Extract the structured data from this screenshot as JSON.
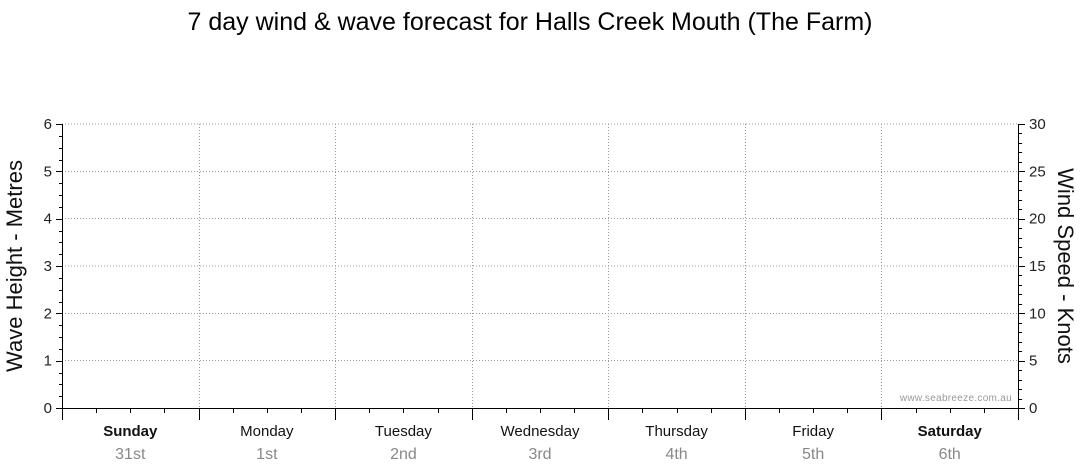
{
  "chart_data": {
    "type": "line",
    "title": "7 day wind & wave forecast for Halls Creek Mouth (The Farm)",
    "ylabel_left": "Wave Height - Metres",
    "ylabel_right": "Wind Speed - Knots",
    "ylim_left": [
      0,
      6
    ],
    "ylim_right": [
      0,
      30
    ],
    "left_ticks": [
      "0",
      "1",
      "2",
      "3",
      "4",
      "5",
      "6"
    ],
    "right_ticks": [
      "0",
      "5",
      "10",
      "15",
      "20",
      "25",
      "30"
    ],
    "days": [
      {
        "name": "Sunday",
        "date": "31st",
        "bold": true
      },
      {
        "name": "Monday",
        "date": "1st",
        "bold": false
      },
      {
        "name": "Tuesday",
        "date": "2nd",
        "bold": false
      },
      {
        "name": "Wednesday",
        "date": "3rd",
        "bold": false
      },
      {
        "name": "Thursday",
        "date": "4th",
        "bold": false
      },
      {
        "name": "Friday",
        "date": "5th",
        "bold": false
      },
      {
        "name": "Saturday",
        "date": "6th",
        "bold": true
      }
    ],
    "series": [],
    "grid": true,
    "watermark": "www.seabreeze.com.au"
  }
}
